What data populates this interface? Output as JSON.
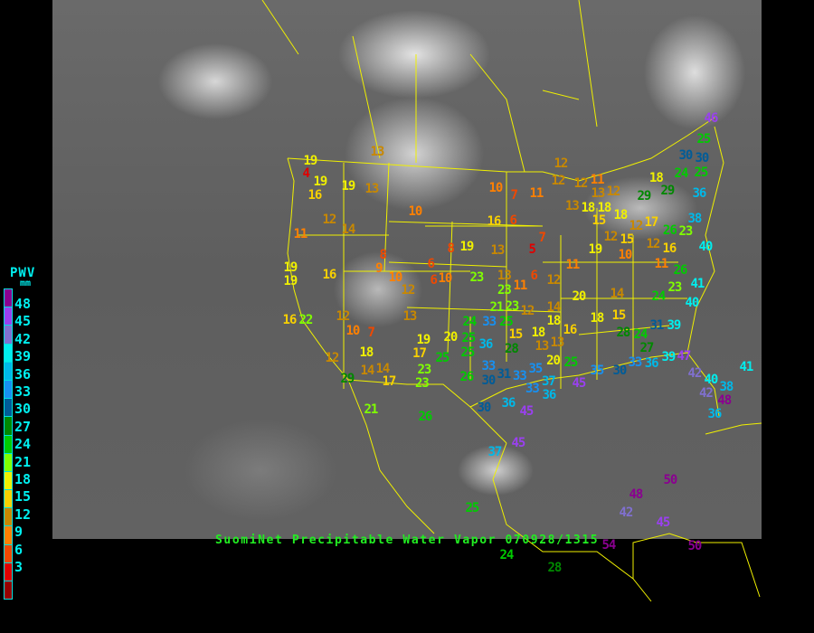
{
  "title": "SuomiNet Precipitable Water Vapor 070928/1315",
  "legend": {
    "title": "PWV",
    "unit": "mm",
    "labels": [
      "48",
      "45",
      "42",
      "39",
      "36",
      "33",
      "30",
      "27",
      "24",
      "21",
      "18",
      "15",
      "12",
      "9",
      "6",
      "3"
    ],
    "colors": [
      "#8a0090",
      "#9a40f0",
      "#8070d0",
      "#00eeee",
      "#00b8e8",
      "#1890f0",
      "#005c98",
      "#008800",
      "#00cc00",
      "#80ff00",
      "#f0f000",
      "#f8d000",
      "#c88800",
      "#ff8000",
      "#f04800",
      "#e00000",
      "#980000"
    ]
  },
  "stations": [
    13,
    19,
    4,
    16,
    19,
    19,
    13,
    10,
    10,
    7,
    12,
    11,
    12,
    12,
    13,
    12,
    14,
    11,
    8,
    9,
    10,
    12,
    6,
    6,
    10,
    8,
    19,
    13,
    16,
    6,
    7,
    5,
    6,
    11,
    12,
    11,
    19,
    10,
    12,
    16,
    11,
    19,
    19,
    16,
    16,
    22,
    12,
    10,
    7,
    13,
    19,
    17,
    18,
    12,
    14,
    14,
    17,
    23,
    23,
    25,
    20,
    25,
    25,
    26,
    30,
    24,
    23,
    13,
    29,
    21,
    26,
    30,
    36,
    45,
    37,
    45,
    25,
    28,
    42,
    48,
    50,
    45,
    50,
    54,
    24,
    20,
    14,
    18,
    15,
    28,
    24,
    27,
    31,
    39,
    24,
    23,
    40,
    41,
    26,
    40,
    38,
    23,
    26,
    29,
    24,
    18,
    29,
    30,
    30,
    25,
    36,
    25,
    46,
    14,
    12,
    15,
    18,
    13,
    13,
    20,
    25,
    35,
    33,
    33,
    31,
    33,
    36,
    21,
    25,
    23,
    33,
    23,
    28,
    18,
    16,
    35,
    30,
    33,
    36,
    39,
    47,
    42,
    40,
    38,
    42,
    48,
    41,
    36,
    36,
    37,
    45,
    12,
    15,
    12,
    17,
    15,
    18,
    18,
    18,
    13,
    11,
    12
  ]
}
